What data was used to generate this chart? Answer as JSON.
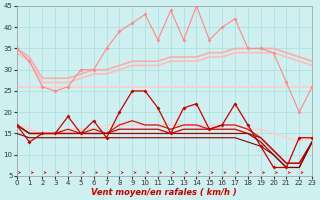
{
  "xlabel": "Vent moyen/en rafales ( km/h )",
  "xlim": [
    0,
    23
  ],
  "ylim": [
    5,
    45
  ],
  "yticks": [
    5,
    10,
    15,
    20,
    25,
    30,
    35,
    40,
    45
  ],
  "xticks": [
    0,
    1,
    2,
    3,
    4,
    5,
    6,
    7,
    8,
    9,
    10,
    11,
    12,
    13,
    14,
    15,
    16,
    17,
    18,
    19,
    20,
    21,
    22,
    23
  ],
  "background_color": "#cff0f0",
  "grid_color": "#aadddd",
  "series": [
    {
      "name": "rafales_markers",
      "y": [
        35,
        32,
        26,
        25,
        26,
        30,
        30,
        35,
        39,
        41,
        43,
        37,
        44,
        37,
        45,
        37,
        40,
        42,
        35,
        35,
        34,
        27,
        20,
        26
      ],
      "color": "#ff8888",
      "lw": 0.8,
      "marker": "D",
      "ms": 2.0,
      "zorder": 4
    },
    {
      "name": "trend_upper1",
      "y": [
        35,
        33,
        28,
        28,
        28,
        29,
        30,
        30,
        31,
        32,
        32,
        32,
        33,
        33,
        33,
        34,
        34,
        35,
        35,
        35,
        35,
        34,
        33,
        32
      ],
      "color": "#ffaaaa",
      "lw": 1.2,
      "marker": null,
      "ms": 0,
      "zorder": 2
    },
    {
      "name": "trend_upper2",
      "y": [
        34,
        32,
        27,
        27,
        27,
        28,
        29,
        29,
        30,
        31,
        31,
        31,
        32,
        32,
        32,
        33,
        33,
        34,
        34,
        34,
        34,
        33,
        32,
        31
      ],
      "color": "#ffbbbb",
      "lw": 1.2,
      "marker": null,
      "ms": 0,
      "zorder": 2
    },
    {
      "name": "flat_line",
      "y": [
        26,
        26,
        26,
        26,
        26,
        26,
        26,
        26,
        26,
        26,
        26,
        26,
        26,
        26,
        26,
        26,
        26,
        26,
        26,
        26,
        26,
        26,
        26,
        26
      ],
      "color": "#ffcccc",
      "lw": 1.2,
      "marker": null,
      "ms": 0,
      "zorder": 2
    },
    {
      "name": "trend_lower",
      "y": [
        17,
        16,
        15,
        15,
        16,
        16,
        16,
        17,
        17,
        17,
        17,
        17,
        17,
        17,
        17,
        17,
        17,
        17,
        16,
        16,
        15,
        14,
        13,
        14
      ],
      "color": "#ffcccc",
      "lw": 1.0,
      "marker": null,
      "ms": 0,
      "zorder": 2
    },
    {
      "name": "vent_markers",
      "y": [
        17,
        13,
        15,
        15,
        19,
        15,
        18,
        14,
        20,
        25,
        25,
        21,
        15,
        21,
        22,
        16,
        17,
        22,
        17,
        12,
        7,
        7,
        14,
        14
      ],
      "color": "#cc0000",
      "lw": 0.9,
      "marker": "D",
      "ms": 2.0,
      "zorder": 5
    },
    {
      "name": "vent_smooth1",
      "y": [
        17,
        15,
        15,
        15,
        16,
        15,
        16,
        15,
        17,
        18,
        17,
        17,
        16,
        17,
        17,
        16,
        17,
        17,
        16,
        14,
        11,
        8,
        8,
        13
      ],
      "color": "#dd1111",
      "lw": 0.9,
      "marker": null,
      "ms": 0,
      "zorder": 3
    },
    {
      "name": "vent_smooth2",
      "y": [
        17,
        15,
        15,
        15,
        15,
        15,
        15,
        15,
        16,
        16,
        16,
        16,
        15,
        16,
        16,
        16,
        16,
        16,
        15,
        14,
        11,
        8,
        8,
        13
      ],
      "color": "#cc0000",
      "lw": 0.9,
      "marker": null,
      "ms": 0,
      "zorder": 3
    },
    {
      "name": "vent_smooth3",
      "y": [
        17,
        15,
        15,
        15,
        15,
        15,
        15,
        15,
        15,
        15,
        15,
        15,
        15,
        15,
        15,
        15,
        15,
        15,
        15,
        13,
        10,
        7,
        7,
        13
      ],
      "color": "#aa0000",
      "lw": 0.9,
      "marker": null,
      "ms": 0,
      "zorder": 3
    },
    {
      "name": "vent_lower",
      "y": [
        15,
        14,
        14,
        14,
        14,
        14,
        14,
        14,
        14,
        14,
        14,
        14,
        14,
        14,
        14,
        14,
        14,
        14,
        13,
        12,
        10,
        7,
        7,
        13
      ],
      "color": "#880000",
      "lw": 0.8,
      "marker": null,
      "ms": 0,
      "zorder": 3
    }
  ]
}
